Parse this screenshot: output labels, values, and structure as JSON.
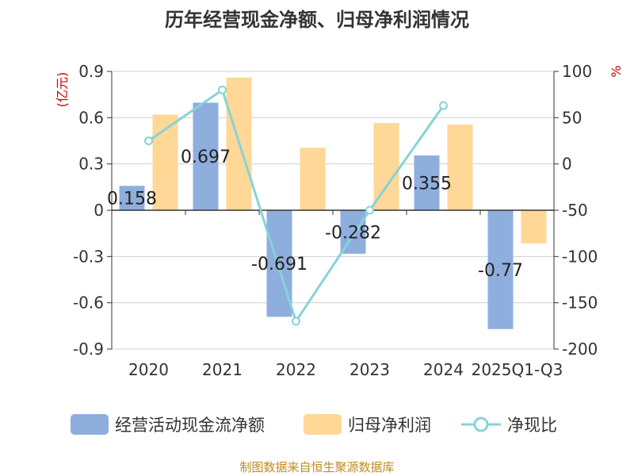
{
  "chart_data": {
    "type": "bar",
    "title": "历年经营现金净额、归母净利润情况",
    "categories": [
      "2020",
      "2021",
      "2022",
      "2023",
      "2024",
      "2025Q1-Q3"
    ],
    "y_left_label": "(亿元)",
    "y_right_label": "%",
    "y_left_ticks": [
      "0.9",
      "0.6",
      "0.3",
      "0",
      "-0.3",
      "-0.6",
      "-0.9"
    ],
    "y_right_ticks": [
      "100",
      "50",
      "0",
      "-50",
      "-100",
      "-150",
      "-200"
    ],
    "ylim_left": [
      -0.9,
      0.9
    ],
    "ylim_right": [
      -200,
      100
    ],
    "series": [
      {
        "name": "经营活动现金流净额",
        "type": "bar",
        "axis": "left",
        "color": "#8eaedd",
        "values": [
          0.158,
          0.697,
          -0.691,
          -0.282,
          0.355,
          -0.77
        ],
        "labels": [
          "0.158",
          "0.697",
          "-0.691",
          "-0.282",
          "0.355",
          "-0.77"
        ]
      },
      {
        "name": "归母净利润",
        "type": "bar",
        "axis": "left",
        "color": "#ffd797",
        "values": [
          0.62,
          0.86,
          0.405,
          0.565,
          0.555,
          -0.215
        ]
      },
      {
        "name": "净现比",
        "type": "line",
        "axis": "right",
        "color": "#86d3d8",
        "values": [
          25,
          80,
          -170,
          -50,
          63,
          null
        ]
      }
    ],
    "legend_position": "bottom",
    "grid": true
  },
  "source": "制图数据来自恒生聚源数据库"
}
